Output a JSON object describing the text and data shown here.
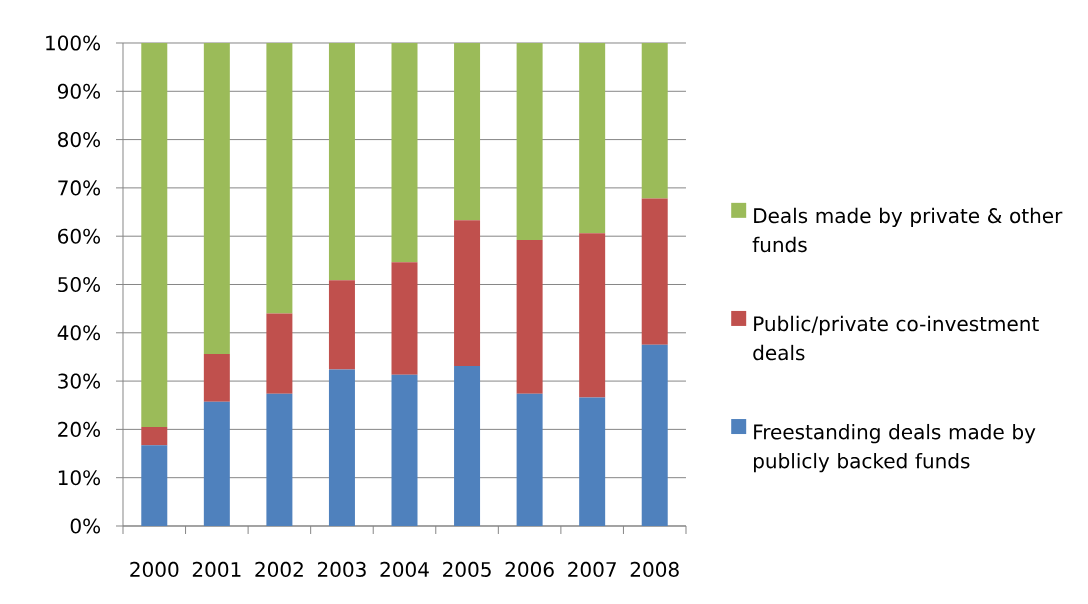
{
  "chart_data": {
    "type": "bar",
    "stacked": true,
    "categories": [
      "2000",
      "2001",
      "2002",
      "2003",
      "2004",
      "2005",
      "2006",
      "2007",
      "2008"
    ],
    "series": [
      {
        "name": "Freestanding deals made by publicly backed funds",
        "color": "#4f81bd",
        "values": [
          16.7,
          25.7,
          27.4,
          32.4,
          31.3,
          33.1,
          27.4,
          26.6,
          37.5
        ]
      },
      {
        "name": "Public/private co-investment deals",
        "color": "#c0504d",
        "values": [
          3.8,
          9.9,
          16.6,
          18.5,
          23.3,
          30.2,
          31.8,
          34.0,
          30.3
        ]
      },
      {
        "name": "Deals made by private & other funds",
        "color": "#9bbb59",
        "values": [
          79.5,
          64.4,
          56.0,
          49.1,
          45.4,
          36.7,
          40.8,
          39.4,
          32.2
        ]
      }
    ],
    "ylim": [
      0,
      100
    ],
    "yticks": [
      {
        "value": 0,
        "label": "0%"
      },
      {
        "value": 10,
        "label": "10%"
      },
      {
        "value": 20,
        "label": "20%"
      },
      {
        "value": 30,
        "label": "30%"
      },
      {
        "value": 40,
        "label": "40%"
      },
      {
        "value": 50,
        "label": "50%"
      },
      {
        "value": 60,
        "label": "60%"
      },
      {
        "value": 70,
        "label": "70%"
      },
      {
        "value": 80,
        "label": "80%"
      },
      {
        "value": 90,
        "label": "90%"
      },
      {
        "value": 100,
        "label": "100%"
      }
    ],
    "grid": "y",
    "legend": "right"
  }
}
